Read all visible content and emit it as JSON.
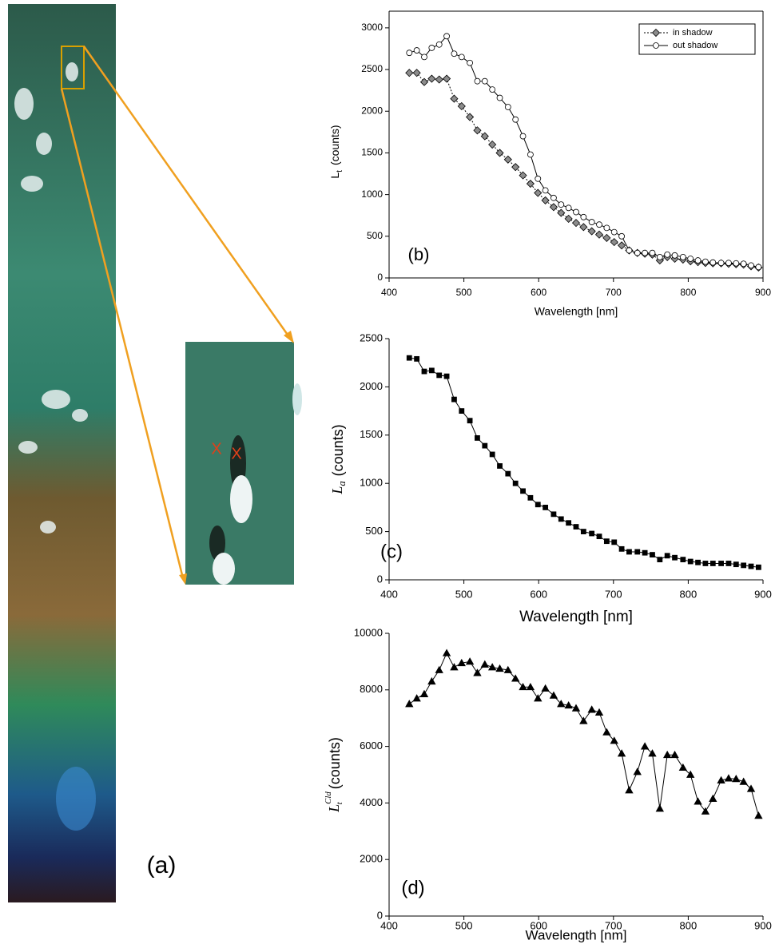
{
  "image_panel": {
    "label": "(a)",
    "markers": [
      "X",
      "X"
    ]
  },
  "chart_data": [
    {
      "type": "line",
      "annotation": "(b)",
      "frame": true,
      "ylabel": {
        "symbol": "L",
        "subscript": "t",
        "text": "(counts)"
      },
      "xlabel": "Wavelength  [nm]",
      "x": [
        427,
        437,
        447,
        457,
        467,
        477,
        487,
        497,
        508,
        518,
        528,
        538,
        548,
        559,
        569,
        579,
        589,
        599,
        609,
        620,
        630,
        640,
        650,
        660,
        671,
        681,
        691,
        701,
        711,
        721,
        732,
        742,
        752,
        762,
        772,
        782,
        793,
        803,
        813,
        823,
        833,
        844,
        854,
        864,
        874,
        884,
        894
      ],
      "series": [
        {
          "name": "in shadow",
          "color": "#000000",
          "marker": "diamond",
          "marker_fill": "#8c8c8c",
          "linestyle": "dotted",
          "values": [
            2460,
            2460,
            2350,
            2390,
            2380,
            2390,
            2150,
            2060,
            1930,
            1770,
            1700,
            1600,
            1500,
            1420,
            1330,
            1230,
            1130,
            1020,
            930,
            850,
            780,
            710,
            660,
            610,
            560,
            520,
            480,
            430,
            390,
            330,
            300,
            290,
            280,
            210,
            250,
            230,
            220,
            200,
            190,
            180,
            175,
            175,
            170,
            165,
            160,
            140,
            125
          ]
        },
        {
          "name": "out shadow",
          "color": "#000000",
          "marker": "circle",
          "marker_fill": "#ffffff",
          "linestyle": "solid",
          "values": [
            2700,
            2730,
            2650,
            2760,
            2800,
            2900,
            2690,
            2650,
            2580,
            2360,
            2360,
            2260,
            2160,
            2050,
            1900,
            1700,
            1480,
            1190,
            1050,
            960,
            880,
            840,
            790,
            730,
            670,
            640,
            600,
            550,
            500,
            330,
            300,
            300,
            300,
            250,
            280,
            270,
            250,
            230,
            210,
            195,
            185,
            180,
            180,
            175,
            170,
            150,
            130
          ]
        }
      ],
      "xlim": [
        400,
        900
      ],
      "xticks": [
        400,
        500,
        600,
        700,
        800,
        900
      ],
      "ylim": [
        0,
        3200
      ],
      "yticks": [
        0,
        500,
        1000,
        1500,
        2000,
        2500,
        3000
      ],
      "legend": "upper right"
    },
    {
      "type": "line",
      "annotation": "(c)",
      "frame": false,
      "ylabel": {
        "symbol": "L",
        "subscript": "a",
        "text": "(counts)"
      },
      "xlabel": "Wavelength  [nm]",
      "x": [
        427,
        437,
        447,
        457,
        467,
        477,
        487,
        497,
        508,
        518,
        528,
        538,
        548,
        559,
        569,
        579,
        589,
        599,
        609,
        620,
        630,
        640,
        650,
        660,
        671,
        681,
        691,
        701,
        711,
        721,
        732,
        742,
        752,
        762,
        772,
        782,
        793,
        803,
        813,
        823,
        833,
        844,
        854,
        864,
        874,
        884,
        894
      ],
      "series": [
        {
          "color": "#000000",
          "marker": "square",
          "marker_fill": "#000000",
          "linestyle": "solid",
          "values": [
            2300,
            2290,
            2160,
            2170,
            2120,
            2110,
            1870,
            1750,
            1650,
            1470,
            1390,
            1300,
            1180,
            1100,
            1000,
            920,
            850,
            780,
            750,
            680,
            630,
            590,
            550,
            500,
            480,
            450,
            400,
            390,
            320,
            290,
            290,
            280,
            260,
            210,
            250,
            230,
            210,
            190,
            180,
            170,
            170,
            170,
            170,
            160,
            150,
            140,
            130
          ]
        }
      ],
      "xlim": [
        400,
        900
      ],
      "xticks": [
        400,
        500,
        600,
        700,
        800,
        900
      ],
      "ylim": [
        0,
        2500
      ],
      "yticks": [
        0,
        500,
        1000,
        1500,
        2000,
        2500
      ]
    },
    {
      "type": "line",
      "annotation": "(d)",
      "frame": false,
      "ylabel": {
        "symbol": "L",
        "subscript": "t",
        "superscript": "Cld",
        "text": "(counts)"
      },
      "xlabel": "Wavelength  [nm]",
      "x": [
        427,
        437,
        447,
        457,
        467,
        477,
        487,
        497,
        508,
        518,
        528,
        538,
        548,
        559,
        569,
        579,
        589,
        599,
        609,
        620,
        630,
        640,
        650,
        660,
        671,
        681,
        691,
        701,
        711,
        721,
        732,
        742,
        752,
        762,
        772,
        782,
        793,
        803,
        813,
        823,
        833,
        844,
        854,
        864,
        874,
        884,
        894
      ],
      "series": [
        {
          "color": "#000000",
          "marker": "triangle",
          "marker_fill": "#000000",
          "linestyle": "solid",
          "values": [
            7500,
            7700,
            7850,
            8300,
            8700,
            9300,
            8800,
            8950,
            9000,
            8600,
            8900,
            8800,
            8750,
            8700,
            8400,
            8100,
            8100,
            7700,
            8050,
            7800,
            7500,
            7450,
            7350,
            6900,
            7300,
            7200,
            6500,
            6200,
            5750,
            4450,
            5100,
            6000,
            5750,
            3800,
            5700,
            5700,
            5250,
            5000,
            4050,
            3700,
            4150,
            4800,
            4870,
            4850,
            4750,
            4500,
            3550
          ]
        }
      ],
      "xlim": [
        400,
        900
      ],
      "xticks": [
        400,
        500,
        600,
        700,
        800,
        900
      ],
      "ylim": [
        0,
        10000
      ],
      "yticks": [
        0,
        2000,
        4000,
        6000,
        8000,
        10000
      ]
    }
  ]
}
